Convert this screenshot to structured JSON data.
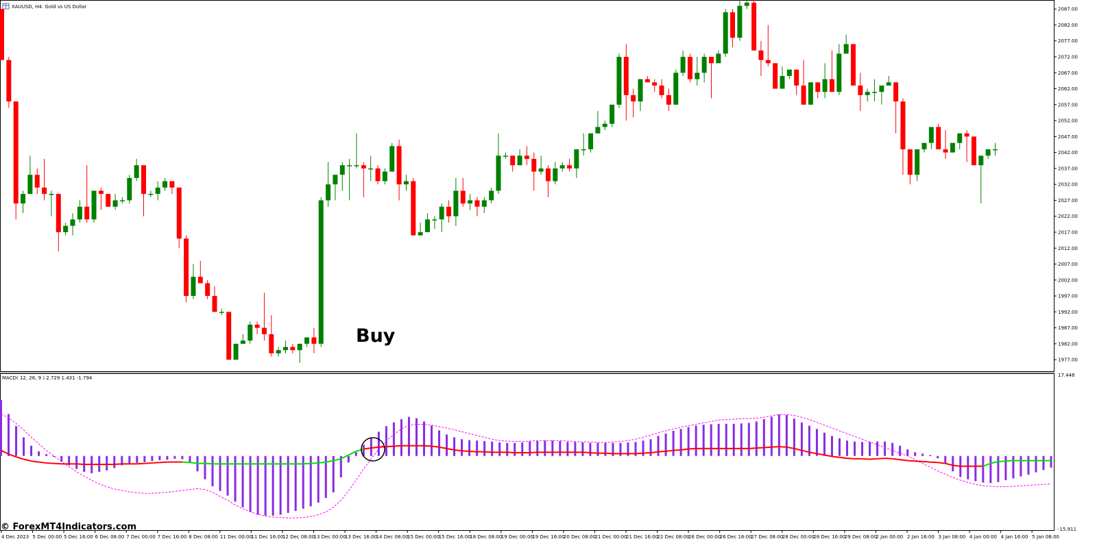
{
  "header": {
    "symbol_title": "XAUUSD, H4:  Gold vs US Dollar"
  },
  "indicator": {
    "title": "MACD( 12, 26, 9 ) 2.729 1.431 -1.794"
  },
  "annotation": {
    "buy_label": "Buy"
  },
  "watermark": {
    "text": "© ForexMT4Indicators.com"
  },
  "colors": {
    "bull": "#008000",
    "bear": "#ff0000",
    "histogram": "#8a2be2",
    "signal_line": "#ff0000",
    "macd_up": "#00e000",
    "dashed_line": "#ff00ff"
  },
  "chart_data": [
    {
      "type": "candlestick",
      "symbol": "XAUUSD",
      "timeframe": "H4",
      "price_axis": {
        "ticks": [
          "2087.00",
          "2082.00",
          "2077.00",
          "2072.00",
          "2067.00",
          "2062.00",
          "2057.00",
          "2052.00",
          "2047.00",
          "2042.00",
          "2037.00",
          "2032.00",
          "2027.00",
          "2022.00",
          "2017.00",
          "2012.00",
          "2007.00",
          "2002.00",
          "1997.00",
          "1992.00",
          "1987.00",
          "1982.00",
          "1977.00"
        ]
      },
      "time_axis": {
        "ticks": [
          "4 Dec 2023",
          "5 Dec 00:00",
          "5 Dec 16:00",
          "6 Dec 08:00",
          "7 Dec 00:00",
          "7 Dec 16:00",
          "8 Dec 08:00",
          "11 Dec 00:00",
          "11 Dec 16:00",
          "12 Dec 08:00",
          "13 Dec 00:00",
          "13 Dec 16:00",
          "14 Dec 08:00",
          "15 Dec 00:00",
          "15 Dec 16:00",
          "18 Dec 08:00",
          "19 Dec 00:00",
          "19 Dec 16:00",
          "20 Dec 08:00",
          "21 Dec 00:00",
          "21 Dec 16:00",
          "22 Dec 08:00",
          "26 Dec 00:00",
          "26 Dec 16:00",
          "27 Dec 08:00",
          "28 Dec 00:00",
          "28 Dec 16:00",
          "29 Dec 08:00",
          "2 Jan 00:00",
          "2 Jan 16:00",
          "3 Jan 08:00",
          "4 Jan 00:00",
          "4 Jan 16:00",
          "5 Jan 08:00"
        ]
      },
      "ylim": [
        1973.6,
        2089.4
      ],
      "candles_ohlc": [
        [
          2087,
          2087,
          2071,
          2071
        ],
        [
          2071,
          2072,
          2056,
          2058
        ],
        [
          2058,
          2058,
          2021,
          2026
        ],
        [
          2026,
          2030,
          2023,
          2029
        ],
        [
          2029,
          2041,
          2029,
          2035
        ],
        [
          2035,
          2037,
          2029,
          2031
        ],
        [
          2031,
          2040,
          2027,
          2029
        ],
        [
          2029,
          2030,
          2022,
          2029
        ],
        [
          2029,
          2029,
          2011,
          2017
        ],
        [
          2017,
          2020,
          2016,
          2019
        ],
        [
          2019,
          2023,
          2016,
          2021
        ],
        [
          2021,
          2027,
          2020,
          2025
        ],
        [
          2025,
          2038,
          2020,
          2021
        ],
        [
          2021,
          2030,
          2020,
          2030
        ],
        [
          2030,
          2031,
          2024,
          2029
        ],
        [
          2029,
          2029,
          2025,
          2025
        ],
        [
          2025,
          2029,
          2024,
          2027
        ],
        [
          2027,
          2028,
          2026,
          2027
        ],
        [
          2027,
          2035,
          2026,
          2034
        ],
        [
          2034,
          2040,
          2033,
          2038
        ],
        [
          2038,
          2038,
          2022,
          2029
        ],
        [
          2029,
          2030,
          2028,
          2029
        ],
        [
          2029,
          2033,
          2027,
          2031
        ],
        [
          2031,
          2034,
          2030,
          2033
        ],
        [
          2033,
          2033,
          2029,
          2031
        ],
        [
          2031,
          2031,
          2012,
          2015
        ],
        [
          2015,
          2016,
          1995,
          1997
        ],
        [
          1997,
          2007,
          1996,
          2003
        ],
        [
          2003,
          2008,
          2001,
          2001
        ],
        [
          2001,
          2002,
          1996,
          1997
        ],
        [
          1997,
          2000,
          1993,
          1992
        ],
        [
          1992,
          1993,
          1991,
          1992
        ],
        [
          1992,
          1992,
          1977,
          1977
        ],
        [
          1977,
          1982,
          1977,
          1982
        ],
        [
          1982,
          1985,
          1982,
          1983
        ],
        [
          1983,
          1989,
          1982,
          1988
        ],
        [
          1988,
          1989,
          1985,
          1987
        ],
        [
          1987,
          1998,
          1983,
          1985
        ],
        [
          1985,
          1991,
          1978,
          1979
        ],
        [
          1979,
          1981,
          1978,
          1980
        ],
        [
          1980,
          1983,
          1979,
          1981
        ],
        [
          1981,
          1982,
          1979,
          1980
        ],
        [
          1980,
          1981,
          1976,
          1982
        ],
        [
          1982,
          1984,
          1981,
          1984
        ],
        [
          1984,
          1987,
          1979,
          1982
        ],
        [
          1982,
          2028,
          1981,
          2027
        ],
        [
          2027,
          2039,
          2025,
          2032
        ],
        [
          2032,
          2035,
          2027,
          2035
        ],
        [
          2035,
          2039,
          2030,
          2038
        ],
        [
          2038,
          2040,
          2027,
          2038
        ],
        [
          2038,
          2048,
          2037,
          2038
        ],
        [
          2038,
          2039,
          2028,
          2037
        ],
        [
          2037,
          2041,
          2033,
          2037
        ],
        [
          2037,
          2038,
          2032,
          2033
        ],
        [
          2033,
          2037,
          2032,
          2036
        ],
        [
          2036,
          2045,
          2036,
          2044
        ],
        [
          2044,
          2046,
          2027,
          2032
        ],
        [
          2032,
          2035,
          2030,
          2033
        ],
        [
          2033,
          2034,
          2016,
          2016
        ],
        [
          2016,
          2020,
          2016,
          2017
        ],
        [
          2017,
          2023,
          2017,
          2021
        ],
        [
          2021,
          2022,
          2018,
          2021
        ],
        [
          2021,
          2026,
          2017,
          2025
        ],
        [
          2025,
          2027,
          2020,
          2022
        ],
        [
          2022,
          2034,
          2019,
          2030
        ],
        [
          2030,
          2034,
          2025,
          2026
        ],
        [
          2026,
          2029,
          2024,
          2027
        ],
        [
          2027,
          2028,
          2022,
          2025
        ],
        [
          2025,
          2028,
          2023,
          2027
        ],
        [
          2027,
          2031,
          2026,
          2030
        ],
        [
          2030,
          2048,
          2029,
          2041
        ],
        [
          2041,
          2042,
          2040,
          2041
        ],
        [
          2041,
          2041,
          2036,
          2038
        ],
        [
          2038,
          2043,
          2038,
          2041
        ],
        [
          2041,
          2044,
          2038,
          2040
        ],
        [
          2040,
          2042,
          2030,
          2036
        ],
        [
          2036,
          2041,
          2035,
          2037
        ],
        [
          2037,
          2038,
          2028,
          2033
        ],
        [
          2033,
          2039,
          2032,
          2037
        ],
        [
          2037,
          2039,
          2036,
          2038
        ],
        [
          2038,
          2040,
          2036,
          2037
        ],
        [
          2037,
          2043,
          2034,
          2043
        ],
        [
          2043,
          2048,
          2041,
          2043
        ],
        [
          2043,
          2048,
          2042,
          2048
        ],
        [
          2048,
          2055,
          2048,
          2050
        ],
        [
          2050,
          2052,
          2049,
          2051
        ],
        [
          2051,
          2057,
          2050,
          2057
        ],
        [
          2057,
          2073,
          2056,
          2072
        ],
        [
          2072,
          2076,
          2052,
          2060
        ],
        [
          2060,
          2062,
          2053,
          2058
        ],
        [
          2058,
          2065,
          2055,
          2065
        ],
        [
          2065,
          2066,
          2064,
          2064
        ],
        [
          2064,
          2065,
          2061,
          2063
        ],
        [
          2063,
          2065,
          2059,
          2060
        ],
        [
          2060,
          2062,
          2055,
          2057
        ],
        [
          2057,
          2068,
          2057,
          2067
        ],
        [
          2067,
          2074,
          2066,
          2072
        ],
        [
          2072,
          2073,
          2064,
          2065
        ],
        [
          2065,
          2072,
          2063,
          2067
        ],
        [
          2067,
          2073,
          2064,
          2072
        ],
        [
          2072,
          2072,
          2059,
          2070
        ],
        [
          2070,
          2074,
          2070,
          2073
        ],
        [
          2073,
          2087,
          2072,
          2086
        ],
        [
          2086,
          2087,
          2075,
          2078
        ],
        [
          2078,
          2091,
          2077,
          2088
        ],
        [
          2088,
          2090,
          2087,
          2089
        ],
        [
          2089,
          2090,
          2074,
          2074
        ],
        [
          2074,
          2077,
          2066,
          2071
        ],
        [
          2071,
          2082,
          2069,
          2070
        ],
        [
          2070,
          2070,
          2062,
          2062
        ],
        [
          2062,
          2069,
          2062,
          2066
        ],
        [
          2066,
          2068,
          2065,
          2068
        ],
        [
          2068,
          2068,
          2060,
          2063
        ],
        [
          2063,
          2071,
          2057,
          2057
        ],
        [
          2057,
          2064,
          2057,
          2064
        ],
        [
          2064,
          2064,
          2059,
          2061
        ],
        [
          2061,
          2070,
          2059,
          2065
        ],
        [
          2065,
          2074,
          2061,
          2061
        ],
        [
          2061,
          2076,
          2060,
          2073
        ],
        [
          2073,
          2079,
          2073,
          2076
        ],
        [
          2076,
          2076,
          2063,
          2063
        ],
        [
          2063,
          2067,
          2055,
          2060
        ],
        [
          2060,
          2062,
          2058,
          2061
        ],
        [
          2061,
          2065,
          2058,
          2061
        ],
        [
          2061,
          2062,
          2057,
          2063
        ],
        [
          2063,
          2066,
          2063,
          2064
        ],
        [
          2064,
          2064,
          2048,
          2058
        ],
        [
          2058,
          2059,
          2035,
          2043
        ],
        [
          2043,
          2043,
          2032,
          2035
        ],
        [
          2035,
          2043,
          2033,
          2043
        ],
        [
          2043,
          2044,
          2042,
          2045
        ],
        [
          2045,
          2048,
          2043,
          2050
        ],
        [
          2050,
          2051,
          2043,
          2043
        ],
        [
          2043,
          2049,
          2040,
          2042
        ],
        [
          2042,
          2043,
          2042,
          2045
        ],
        [
          2045,
          2048,
          2043,
          2048
        ],
        [
          2048,
          2049,
          2039,
          2047
        ],
        [
          2047,
          2047,
          2038,
          2038
        ],
        [
          2038,
          2041,
          2026,
          2041
        ],
        [
          2041,
          2043,
          2040,
          2043
        ],
        [
          2043,
          2045,
          2041,
          2043
        ]
      ]
    },
    {
      "type": "bar",
      "name": "MACD( 12, 26, 9 )",
      "values_text": "2.729 1.431 -1.794",
      "yaxis_ticks": [
        "17.448",
        "-15.911"
      ],
      "ylim": [
        -15.911,
        17.448
      ],
      "histogram_values": [
        12.0,
        9.0,
        6.4,
        4.0,
        2.2,
        1.0,
        0.4,
        0,
        -1.2,
        -2.0,
        -2.8,
        -3.4,
        -3.7,
        -3.4,
        -3.1,
        -2.6,
        -2.0,
        -1.7,
        -1.5,
        -1.3,
        -1.1,
        -0.9,
        -0.8,
        -0.6,
        -0.7,
        -1.5,
        -3.3,
        -5.0,
        -6.5,
        -7.5,
        -8.5,
        -9.8,
        -11.0,
        -12.0,
        -12.6,
        -12.8,
        -12.8,
        -12.6,
        -12.2,
        -11.8,
        -11.3,
        -10.8,
        -10.0,
        -9.0,
        -7.8,
        -4.6,
        -1.4,
        0.8,
        2.4,
        3.8,
        5.2,
        6.4,
        7.2,
        7.9,
        8.4,
        8.1,
        7.4,
        6.5,
        5.5,
        4.6,
        4.0,
        3.6,
        3.4,
        3.3,
        3.2,
        3.1,
        2.9,
        2.8,
        2.8,
        2.9,
        3.1,
        3.2,
        3.3,
        3.3,
        3.2,
        3.0,
        3.0,
        2.9,
        2.8,
        2.8,
        2.8,
        2.8,
        2.8,
        2.9,
        3.0,
        3.3,
        3.6,
        4.3,
        4.8,
        5.4,
        5.8,
        6.2,
        6.5,
        6.7,
        6.8,
        6.9,
        6.9,
        6.9,
        7.0,
        7.1,
        7.4,
        7.9,
        8.4,
        8.9,
        8.8,
        8.0,
        7.2,
        6.5,
        5.8,
        5.0,
        4.3,
        3.8,
        3.3,
        3.1,
        3.0,
        3.0,
        3.1,
        3.1,
        2.8,
        2.2,
        1.4,
        0.8,
        0.5,
        0.2,
        -0.5,
        -1.5,
        -3.3,
        -4.5,
        -5.0,
        -5.4,
        -5.7,
        -5.8,
        -5.6,
        -5.2,
        -4.8,
        -4.4,
        -4.0,
        -3.5,
        -3.0,
        -2.5
      ],
      "signal_values": [
        1.2,
        0.4,
        -0.2,
        -0.7,
        -1.1,
        -1.3,
        -1.5,
        -1.6,
        -1.7,
        -1.7,
        -1.7,
        -1.8,
        -1.8,
        -1.8,
        -1.8,
        -1.8,
        -1.7,
        -1.7,
        -1.7,
        -1.6,
        -1.5,
        -1.4,
        -1.3,
        -1.3,
        -1.3,
        -1.4,
        -1.6,
        -1.6,
        -1.7,
        -1.7,
        -1.7,
        -1.7,
        -1.7,
        -1.7,
        -1.7,
        -1.7,
        -1.7,
        -1.7,
        -1.7,
        -1.7,
        -1.7,
        -1.6,
        -1.5,
        -1.3,
        -1.0,
        -0.6,
        0.2,
        1.0,
        1.5,
        1.7,
        1.9,
        2.0,
        2.1,
        2.2,
        2.2,
        2.2,
        2.2,
        2.1,
        1.9,
        1.6,
        1.3,
        1.1,
        1.0,
        0.9,
        0.9,
        0.8,
        0.8,
        0.8,
        0.7,
        0.7,
        0.7,
        0.8,
        0.8,
        0.8,
        0.8,
        0.8,
        0.8,
        0.8,
        0.7,
        0.6,
        0.6,
        0.5,
        0.5,
        0.5,
        0.5,
        0.6,
        0.7,
        0.9,
        1.0,
        1.2,
        1.3,
        1.5,
        1.6,
        1.6,
        1.6,
        1.6,
        1.6,
        1.6,
        1.6,
        1.6,
        1.7,
        1.8,
        1.9,
        2.0,
        1.9,
        1.6,
        1.2,
        0.8,
        0.5,
        0.2,
        -0.1,
        -0.3,
        -0.5,
        -0.6,
        -0.6,
        -0.7,
        -0.6,
        -0.5,
        -0.6,
        -0.8,
        -1.0,
        -1.1,
        -1.2,
        -1.3,
        -1.4,
        -1.6,
        -2.0,
        -2.2,
        -2.2,
        -2.2,
        -2.2,
        -1.6,
        -1.2,
        -1.1,
        -1.0,
        -1.0,
        -1.0,
        -1.0,
        -1.0,
        -1.0
      ],
      "dashed_values": [
        9.0,
        8.2,
        7.0,
        5.6,
        4.0,
        2.6,
        1.2,
        0.0,
        -1.2,
        -2.3,
        -3.4,
        -4.3,
        -5.2,
        -6.0,
        -6.6,
        -7.1,
        -7.4,
        -7.7,
        -7.9,
        -8.0,
        -8.0,
        -7.9,
        -7.8,
        -7.6,
        -7.4,
        -7.2,
        -7.0,
        -7.2,
        -7.8,
        -8.7,
        -9.5,
        -10.5,
        -11.3,
        -12.0,
        -12.5,
        -12.9,
        -13.1,
        -13.2,
        -13.3,
        -13.3,
        -13.2,
        -13.0,
        -12.6,
        -12.0,
        -11.0,
        -9.5,
        -7.5,
        -5.2,
        -2.8,
        -0.6,
        1.4,
        3.2,
        4.6,
        5.8,
        6.6,
        6.8,
        6.8,
        6.6,
        6.3,
        6.0,
        5.6,
        5.2,
        4.8,
        4.4,
        4.0,
        3.6,
        3.3,
        3.2,
        3.1,
        3.1,
        3.2,
        3.3,
        3.3,
        3.3,
        3.3,
        3.2,
        3.1,
        3.0,
        3.0,
        2.9,
        2.9,
        3.0,
        3.1,
        3.3,
        3.6,
        4.0,
        4.5,
        5.0,
        5.4,
        5.8,
        6.2,
        6.5,
        6.8,
        7.1,
        7.4,
        7.7,
        7.8,
        7.9,
        8.0,
        8.0,
        8.1,
        8.3,
        8.6,
        8.9,
        8.9,
        8.7,
        8.3,
        7.8,
        7.2,
        6.6,
        6.0,
        5.4,
        4.8,
        4.2,
        3.6,
        3.0,
        2.4,
        1.8,
        1.2,
        0.6,
        0.0,
        -0.8,
        -1.6,
        -2.4,
        -3.2,
        -3.9,
        -4.6,
        -5.2,
        -5.7,
        -6.1,
        -6.4,
        -6.5,
        -6.6,
        -6.6,
        -6.5,
        -6.4,
        -6.3,
        -6.2,
        -6.1,
        -6.0
      ]
    }
  ]
}
